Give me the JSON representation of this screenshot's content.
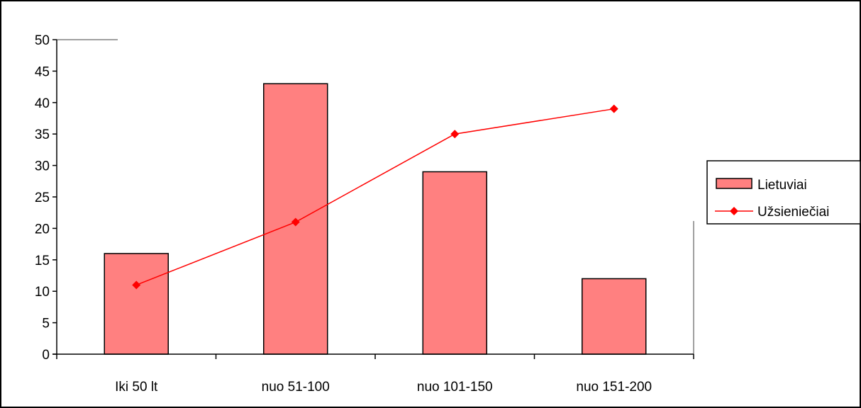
{
  "chart_data": {
    "type": "bar",
    "categories": [
      "Iki 50 lt",
      "nuo 51-100",
      "nuo 101-150",
      "nuo 151-200"
    ],
    "series": [
      {
        "name": "Lietuviai",
        "type": "bar",
        "values": [
          16,
          43,
          29,
          12
        ],
        "color": "#ff8080"
      },
      {
        "name": "Užsieniečiai",
        "type": "line",
        "values": [
          11,
          21,
          35,
          39
        ],
        "color": "#ff0000",
        "marker": "diamond"
      }
    ],
    "title": "",
    "xlabel": "",
    "ylabel": "",
    "ylim": [
      0,
      50
    ],
    "yticks": [
      0,
      5,
      10,
      15,
      20,
      25,
      30,
      35,
      40,
      45,
      50
    ],
    "grid": false,
    "legend": "right"
  }
}
